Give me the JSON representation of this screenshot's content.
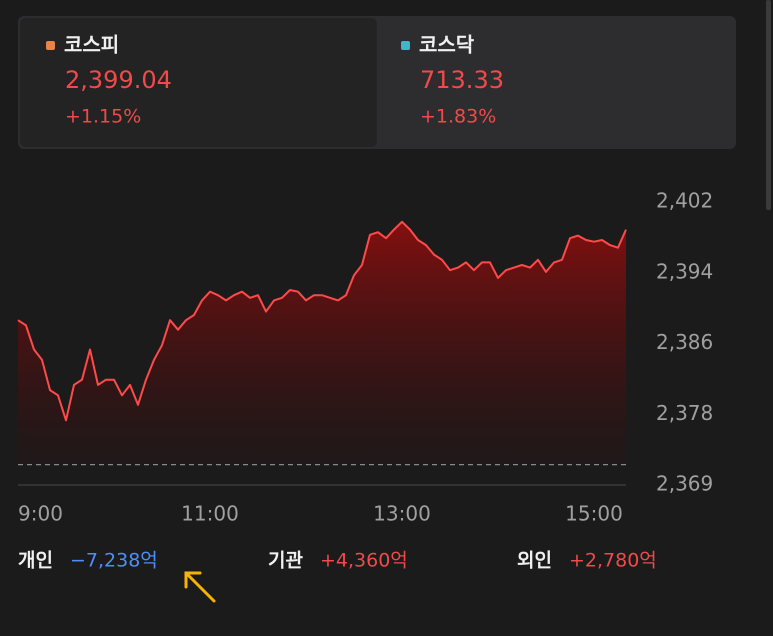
{
  "indices": [
    {
      "name": "코스피",
      "value": "2,399.04",
      "change": "+1.15%",
      "color": "#e8834a"
    },
    {
      "name": "코스닥",
      "value": "713.33",
      "change": "+1.83%",
      "color": "#3fb6c9"
    }
  ],
  "chart_data": {
    "type": "area",
    "x": [
      "9:00",
      "9:05",
      "9:10",
      "9:15",
      "9:20",
      "9:25",
      "9:30",
      "9:35",
      "9:40",
      "9:45",
      "9:50",
      "9:55",
      "10:00",
      "10:05",
      "10:10",
      "10:15",
      "10:20",
      "10:25",
      "10:30",
      "10:35",
      "10:40",
      "10:45",
      "10:50",
      "10:55",
      "11:00",
      "11:05",
      "11:10",
      "11:15",
      "11:20",
      "11:25",
      "11:30",
      "11:35",
      "11:40",
      "11:45",
      "11:50",
      "11:55",
      "12:00",
      "12:05",
      "12:10",
      "12:15",
      "12:20",
      "12:25",
      "12:30",
      "12:35",
      "12:40",
      "12:45",
      "12:50",
      "12:55",
      "13:00",
      "13:05",
      "13:10",
      "13:15",
      "13:20",
      "13:25",
      "13:30",
      "13:35",
      "13:40",
      "13:45",
      "13:50",
      "13:55",
      "14:00",
      "14:05",
      "14:10",
      "14:15",
      "14:20",
      "14:25",
      "14:30",
      "14:35",
      "14:40",
      "14:45",
      "14:50",
      "14:55",
      "15:00",
      "15:05",
      "15:10",
      "15:15",
      "15:20"
    ],
    "values": [
      2388.5,
      2387.9,
      2385.1,
      2383.9,
      2380.4,
      2379.8,
      2376.9,
      2381.0,
      2381.6,
      2385.1,
      2381.0,
      2381.6,
      2381.6,
      2379.8,
      2381.0,
      2378.7,
      2381.6,
      2383.9,
      2385.6,
      2388.5,
      2387.4,
      2388.5,
      2389.1,
      2390.8,
      2391.8,
      2391.4,
      2390.8,
      2391.4,
      2391.8,
      2391.1,
      2391.4,
      2389.5,
      2390.8,
      2391.1,
      2392.0,
      2391.8,
      2390.8,
      2391.4,
      2391.4,
      2391.1,
      2390.8,
      2391.4,
      2393.7,
      2394.9,
      2398.4,
      2398.7,
      2398.0,
      2399.0,
      2399.9,
      2399.0,
      2397.8,
      2397.2,
      2396.1,
      2395.5,
      2394.3,
      2394.6,
      2395.2,
      2394.3,
      2395.2,
      2395.2,
      2393.4,
      2394.3,
      2394.6,
      2394.9,
      2394.6,
      2395.5,
      2394.1,
      2395.2,
      2395.5,
      2398.0,
      2398.3,
      2397.8,
      2397.6,
      2397.8,
      2397.2,
      2396.9,
      2399.0
    ],
    "color": "#ff4a4a",
    "baseline": 2371.76,
    "xlim": [
      "9:00",
      "15:20"
    ],
    "xticks": [
      "9:00",
      "11:00",
      "13:00",
      "15:00"
    ],
    "ylim": [
      2369.4,
      2402.2
    ],
    "yticks": [
      {
        "value": 2402.2,
        "label": "2,402"
      },
      {
        "value": 2394.0,
        "label": "2,394"
      },
      {
        "value": 2385.8,
        "label": "2,386"
      },
      {
        "value": 2377.6,
        "label": "2,378"
      },
      {
        "value": 2369.4,
        "label": "2,369"
      }
    ]
  },
  "investors": [
    {
      "name": "개인",
      "value": "−7,238억",
      "color": "#4d8ef7"
    },
    {
      "name": "기관",
      "value": "+4,360억",
      "color": "#f04a4a"
    },
    {
      "name": "외인",
      "value": "+2,780억",
      "color": "#f04a4a"
    }
  ]
}
